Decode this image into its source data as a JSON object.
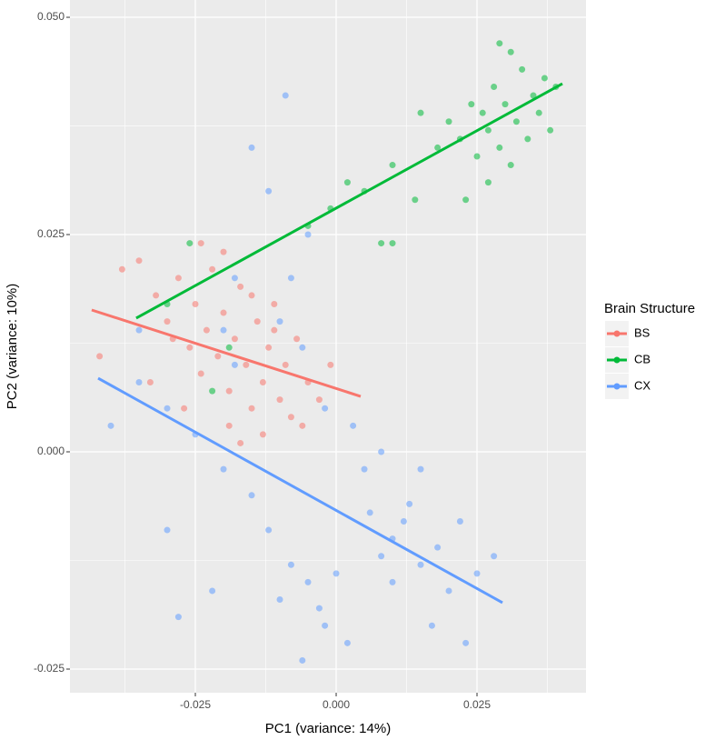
{
  "chart_data": {
    "type": "scatter",
    "x_label": "PC1 (variance: 14%)",
    "y_label": "PC2 (variance: 10%)",
    "legend_title": "Brain Structure",
    "legend_position": "right",
    "grid": true,
    "xlim": [
      -0.04726,
      0.04435
    ],
    "ylim": [
      -0.02772,
      0.05199
    ],
    "xticks": [
      {
        "value": -0.025,
        "label": "-0.025"
      },
      {
        "value": 0,
        "label": "0.000"
      },
      {
        "value": 0.025,
        "label": "0.025"
      }
    ],
    "yticks": [
      {
        "value": -0.025,
        "label": "-0.025"
      },
      {
        "value": 0,
        "label": "0.000"
      },
      {
        "value": 0.025,
        "label": "0.025"
      },
      {
        "value": 0.05,
        "label": "0.050"
      }
    ],
    "xminor": [
      -0.0375,
      -0.0125,
      0.0125,
      0.0375
    ],
    "yminor": [
      -0.0125,
      0.0125,
      0.0375
    ],
    "series": [
      {
        "name": "BS",
        "color": "#F8766D",
        "x": [
          -0.035,
          -0.032,
          -0.03,
          -0.028,
          -0.026,
          -0.025,
          -0.024,
          -0.023,
          -0.022,
          -0.021,
          -0.02,
          -0.019,
          -0.018,
          -0.017,
          -0.016,
          -0.015,
          -0.014,
          -0.013,
          -0.012,
          -0.011,
          -0.01,
          -0.009,
          -0.008,
          -0.007,
          -0.005,
          -0.003,
          -0.001,
          -0.042,
          -0.038,
          -0.033,
          -0.027,
          -0.024,
          -0.019,
          -0.017,
          -0.029,
          -0.02,
          -0.013,
          -0.006,
          -0.015,
          -0.011
        ],
        "y": [
          0.022,
          0.018,
          0.015,
          0.02,
          0.012,
          0.017,
          0.009,
          0.014,
          0.021,
          0.011,
          0.016,
          0.007,
          0.013,
          0.019,
          0.01,
          0.005,
          0.015,
          0.008,
          0.012,
          0.017,
          0.006,
          0.01,
          0.004,
          0.013,
          0.008,
          0.006,
          0.01,
          0.011,
          0.021,
          0.008,
          0.005,
          0.024,
          0.003,
          0.001,
          0.013,
          0.023,
          0.002,
          0.003,
          0.018,
          0.014
        ],
        "fit_x": [
          -0.0434,
          0.00435
        ],
        "fit_y": [
          0.01632,
          0.00638
        ]
      },
      {
        "name": "CB",
        "color": "#00BA38",
        "x": [
          0.02,
          0.022,
          0.024,
          0.025,
          0.026,
          0.027,
          0.028,
          0.029,
          0.03,
          0.031,
          0.032,
          0.033,
          0.034,
          0.035,
          0.036,
          0.037,
          0.038,
          0.039,
          0.029,
          0.031,
          0.015,
          0.018,
          0.01,
          0.005,
          0.002,
          -0.001,
          -0.005,
          0.008,
          0.01,
          -0.026,
          -0.03,
          -0.019,
          -0.022,
          0.014,
          0.023,
          0.027
        ],
        "y": [
          0.038,
          0.036,
          0.04,
          0.034,
          0.039,
          0.037,
          0.042,
          0.035,
          0.04,
          0.033,
          0.038,
          0.044,
          0.036,
          0.041,
          0.039,
          0.043,
          0.037,
          0.042,
          0.047,
          0.046,
          0.039,
          0.035,
          0.033,
          0.03,
          0.031,
          0.028,
          0.026,
          0.024,
          0.024,
          0.024,
          0.017,
          0.012,
          0.007,
          0.029,
          0.029,
          0.031
        ],
        "fit_x": [
          -0.0355,
          0.04016
        ],
        "fit_y": [
          0.01538,
          0.04236
        ]
      },
      {
        "name": "CX",
        "color": "#619CFF",
        "x": [
          0.01,
          0.012,
          0.008,
          0.015,
          0.013,
          0.006,
          0.018,
          0.01,
          0.02,
          0.005,
          -0.005,
          -0.003,
          -0.008,
          -0.002,
          -0.01,
          0,
          -0.012,
          -0.015,
          -0.02,
          -0.025,
          -0.03,
          -0.035,
          -0.04,
          -0.018,
          -0.01,
          -0.008,
          -0.005,
          -0.012,
          -0.015,
          -0.009,
          -0.006,
          -0.002,
          0.003,
          0.008,
          0.015,
          0.022,
          0.025,
          0.028,
          0.023,
          -0.022,
          -0.028,
          -0.03,
          0.002,
          -0.006,
          0.017,
          -0.018,
          -0.02,
          -0.035
        ],
        "y": [
          -0.01,
          -0.008,
          -0.012,
          -0.013,
          -0.006,
          -0.007,
          -0.011,
          -0.015,
          -0.016,
          -0.002,
          -0.015,
          -0.018,
          -0.013,
          -0.02,
          -0.017,
          -0.014,
          -0.009,
          -0.005,
          -0.002,
          0.002,
          0.005,
          0.008,
          0.003,
          0.01,
          0.015,
          0.02,
          0.025,
          0.03,
          0.035,
          0.041,
          0.012,
          0.005,
          0.003,
          0,
          -0.002,
          -0.008,
          -0.014,
          -0.012,
          -0.022,
          -0.016,
          -0.019,
          -0.009,
          -0.022,
          -0.024,
          -0.02,
          0.02,
          0.014,
          0.014
        ],
        "fit_x": [
          -0.04226,
          0.02952
        ],
        "fit_y": [
          0.00847,
          -0.01736
        ]
      }
    ]
  }
}
